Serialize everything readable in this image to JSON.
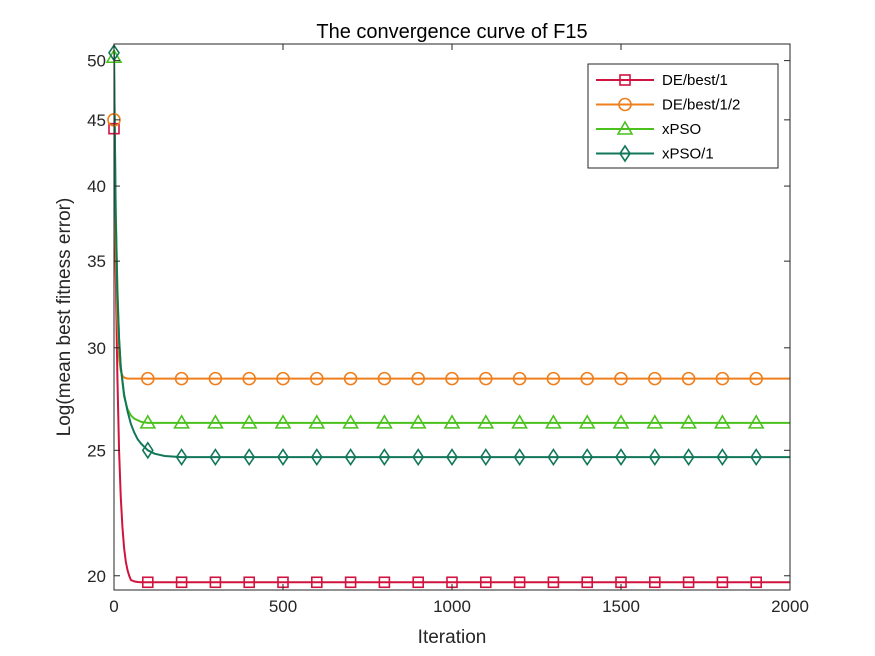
{
  "chart_data": {
    "type": "line",
    "title": "The convergence curve of F15",
    "xlabel": "Iteration",
    "ylabel": "Log(mean best fitness error)",
    "xlim": [
      0,
      2000
    ],
    "ylim": [
      19.5,
      51.5
    ],
    "y_scale": "log",
    "xticks": [
      0,
      500,
      1000,
      1500,
      2000
    ],
    "xtick_labels": [
      "0",
      "500",
      "1000",
      "1500",
      "2000"
    ],
    "yticks": [
      20,
      25,
      30,
      35,
      40,
      45,
      50
    ],
    "ytick_labels": [
      "20",
      "25",
      "30",
      "35",
      "40",
      "45",
      "50"
    ],
    "grid": false,
    "legend_position": "top-right",
    "marker_x": [
      0,
      100,
      200,
      300,
      400,
      500,
      600,
      700,
      800,
      900,
      1000,
      1100,
      1200,
      1300,
      1400,
      1500,
      1600,
      1700,
      1800,
      1900
    ],
    "series": [
      {
        "name": "DE/best/1",
        "color": "#d0143f",
        "marker": "square",
        "x": [
          0,
          5,
          10,
          15,
          20,
          25,
          30,
          35,
          40,
          45,
          50,
          60,
          70,
          80,
          100,
          2000
        ],
        "y": [
          44.3,
          34.5,
          28.5,
          25.0,
          23.0,
          21.8,
          21.0,
          20.5,
          20.2,
          20.0,
          19.85,
          19.8,
          19.78,
          19.77,
          19.77,
          19.77
        ]
      },
      {
        "name": "DE/best/1/2",
        "color": "#ee7f1c",
        "marker": "circle",
        "x": [
          0,
          5,
          10,
          15,
          20,
          25,
          30,
          40,
          2000
        ],
        "y": [
          45.0,
          36.0,
          31.5,
          29.5,
          28.8,
          28.55,
          28.45,
          28.4,
          28.4
        ]
      },
      {
        "name": "xPSO",
        "color": "#4bc11e",
        "marker": "triangle",
        "x": [
          0,
          5,
          10,
          15,
          20,
          30,
          40,
          50,
          60,
          80,
          100,
          2000
        ],
        "y": [
          50.3,
          38.5,
          33.5,
          30.5,
          29.0,
          27.5,
          26.9,
          26.6,
          26.45,
          26.3,
          26.25,
          26.25
        ]
      },
      {
        "name": "xPSO/1",
        "color": "#12775a",
        "marker": "diamond",
        "x": [
          0,
          5,
          10,
          15,
          20,
          30,
          40,
          50,
          60,
          70,
          80,
          100,
          120,
          150,
          200,
          300,
          2000
        ],
        "y": [
          50.7,
          38.0,
          33.0,
          30.5,
          29.0,
          27.6,
          26.8,
          26.2,
          25.8,
          25.5,
          25.3,
          25.0,
          24.85,
          24.75,
          24.7,
          24.7,
          24.7
        ]
      }
    ]
  }
}
